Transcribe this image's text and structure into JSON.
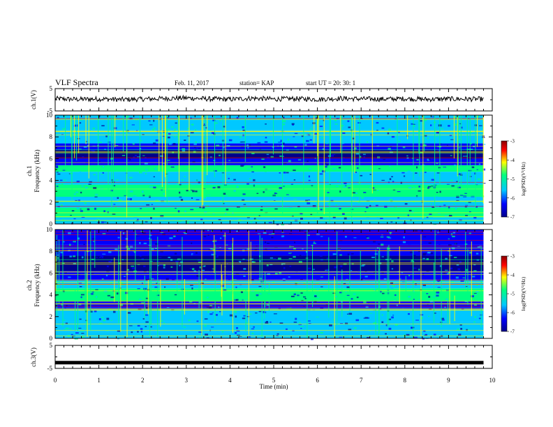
{
  "header": {
    "title": "VLF Spectra",
    "date": "Feb. 11, 2017",
    "station": "station= KAP",
    "start_ut": "start  UT =   20: 30: 1"
  },
  "colors": {
    "trace": "#000000",
    "colormap": [
      "#00008b",
      "#0000ff",
      "#00c8ff",
      "#00ff80",
      "#ffff00",
      "#ff0000",
      "#8b0000"
    ]
  },
  "chart_data": [
    {
      "type": "line",
      "panel": "ch1-waveform",
      "ylabel": "ch.1(V)",
      "ylim": [
        -5,
        5
      ],
      "yticks": [
        "5",
        "-5"
      ],
      "x": [
        0,
        0.5,
        1,
        1.5,
        2,
        2.5,
        3,
        3.5,
        4,
        4.5,
        5,
        5.5,
        6,
        6.5,
        7,
        7.5,
        8,
        8.5,
        9,
        9.5,
        9.8
      ],
      "values": [
        0.5,
        0.2,
        0.4,
        0.1,
        0.3,
        0.6,
        0.8,
        0.4,
        0.2,
        0.7,
        0.3,
        0.5,
        0.2,
        0.6,
        0.4,
        0.3,
        0.5,
        0.2,
        0.4,
        0.3,
        0.3
      ]
    },
    {
      "type": "heatmap",
      "panel": "ch1-spectrogram",
      "ylabel": "ch.1\nFrequency (kHz)",
      "ylim": [
        0,
        10
      ],
      "yticks": [
        "0",
        "2",
        "4",
        "6",
        "8",
        "10"
      ],
      "xlim": [
        0,
        10
      ],
      "colorbar": {
        "label": "log(PSD)(V²/Hz)",
        "range": [
          -7,
          -3
        ],
        "ticks": [
          "-3",
          "-4",
          "-5",
          "-6",
          "-7"
        ]
      }
    },
    {
      "type": "heatmap",
      "panel": "ch2-spectrogram",
      "ylabel": "ch.2\nFrequency (kHz)",
      "ylim": [
        0,
        10
      ],
      "yticks": [
        "0",
        "2",
        "4",
        "6",
        "8",
        "10"
      ],
      "xlim": [
        0,
        10
      ],
      "colorbar": {
        "label": "log(PSD)(V²/Hz)",
        "range": [
          -7,
          -3
        ],
        "ticks": [
          "-3",
          "-4",
          "-5",
          "-6",
          "-7"
        ]
      }
    },
    {
      "type": "line",
      "panel": "ch3-waveform",
      "ylabel": "ch.3(V)",
      "ylim": [
        -5,
        5
      ],
      "yticks": [
        "5",
        "-5"
      ],
      "x": [
        0,
        9.8
      ],
      "values": [
        -2.5,
        -2.5
      ],
      "xlabel": "Time  (min)",
      "xlim": [
        0,
        10
      ],
      "xticks": [
        "0",
        "1",
        "2",
        "3",
        "4",
        "5",
        "6",
        "7",
        "8",
        "9",
        "10"
      ]
    }
  ]
}
